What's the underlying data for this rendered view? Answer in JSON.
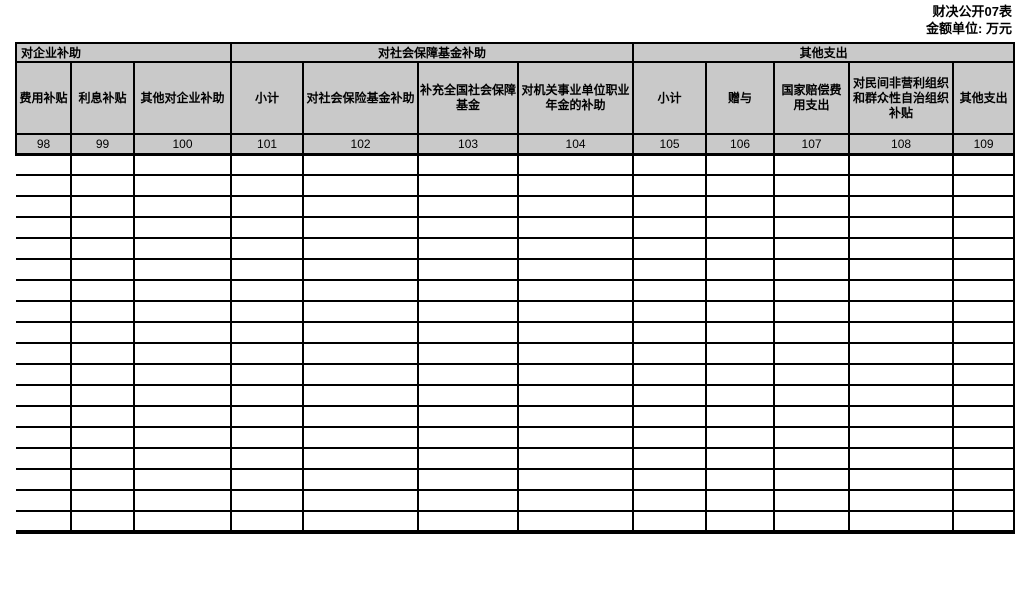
{
  "page": {
    "form_title": "财决公开07表",
    "unit_label": "金额单位: 万元"
  },
  "table": {
    "groups": [
      {
        "label": "对企业补助"
      },
      {
        "label": "对社会保障基金补助"
      },
      {
        "label": "其他支出"
      }
    ],
    "columns": [
      {
        "label": "费用补贴",
        "code": "98"
      },
      {
        "label": "利息补贴",
        "code": "99"
      },
      {
        "label": "其他对企业补助",
        "code": "100"
      },
      {
        "label": "小计",
        "code": "101"
      },
      {
        "label": "对社会保险基金补助",
        "code": "102"
      },
      {
        "label": "补充全国社会保障基金",
        "code": "103"
      },
      {
        "label": "对机关事业单位职业年金的补助",
        "code": "104"
      },
      {
        "label": "小计",
        "code": "105"
      },
      {
        "label": "赠与",
        "code": "106"
      },
      {
        "label": "国家赔偿费用支出",
        "code": "107"
      },
      {
        "label": "对民间非营利组织和群众性自治组织补贴",
        "code": "108"
      },
      {
        "label": "其他支出",
        "code": "109"
      }
    ],
    "body_row_count": 18,
    "cells": [],
    "colors": {
      "header_bg": "#c9c9c9",
      "border": "#000000"
    }
  }
}
